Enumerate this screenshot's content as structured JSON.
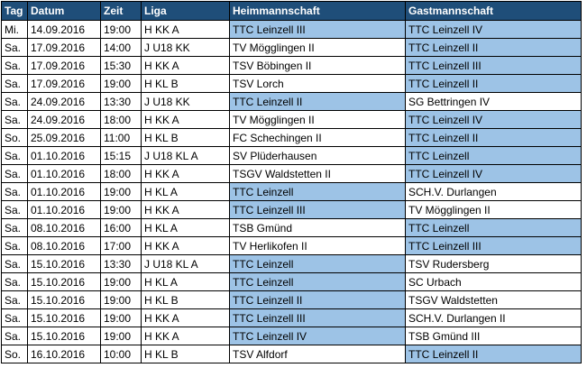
{
  "table": {
    "headers": {
      "tag": "Tag",
      "datum": "Datum",
      "zeit": "Zeit",
      "liga": "Liga",
      "heim": "Heimmannschaft",
      "gast": "Gastmannschaft"
    },
    "highlight_color": "#9dc3e6",
    "header_color": "#1f4e79",
    "rows": [
      {
        "tag": "Mi.",
        "datum": "14.09.2016",
        "zeit": "19:00",
        "liga": "H KK A",
        "heim": "TTC Leinzell III",
        "gast": "TTC Leinzell IV",
        "heim_hl": true,
        "gast_hl": true
      },
      {
        "tag": "Sa.",
        "datum": "17.09.2016",
        "zeit": "14:00",
        "liga": "J U18 KK",
        "heim": "TV Mögglingen II",
        "gast": "TTC Leinzell II",
        "heim_hl": false,
        "gast_hl": true
      },
      {
        "tag": "Sa.",
        "datum": "17.09.2016",
        "zeit": "15:30",
        "liga": "H KK A",
        "heim": "TSV Böbingen II",
        "gast": "TTC Leinzell III",
        "heim_hl": false,
        "gast_hl": true
      },
      {
        "tag": "Sa.",
        "datum": "17.09.2016",
        "zeit": "19:00",
        "liga": "H KL B",
        "heim": "TSV Lorch",
        "gast": "TTC Leinzell II",
        "heim_hl": false,
        "gast_hl": true
      },
      {
        "tag": "Sa.",
        "datum": "24.09.2016",
        "zeit": "13:30",
        "liga": "J U18 KK",
        "heim": "TTC Leinzell II",
        "gast": "SG Bettringen IV",
        "heim_hl": true,
        "gast_hl": false
      },
      {
        "tag": "Sa.",
        "datum": "24.09.2016",
        "zeit": "18:00",
        "liga": "H KK A",
        "heim": "TV Mögglingen II",
        "gast": "TTC Leinzell IV",
        "heim_hl": false,
        "gast_hl": true
      },
      {
        "tag": "So.",
        "datum": "25.09.2016",
        "zeit": "11:00",
        "liga": "H KL B",
        "heim": "FC Schechingen II",
        "gast": "TTC Leinzell II",
        "heim_hl": false,
        "gast_hl": true
      },
      {
        "tag": "Sa.",
        "datum": "01.10.2016",
        "zeit": "15:15",
        "liga": "J U18 KL A",
        "heim": "SV Plüderhausen",
        "gast": "TTC Leinzell",
        "heim_hl": false,
        "gast_hl": true
      },
      {
        "tag": "Sa.",
        "datum": "01.10.2016",
        "zeit": "18:00",
        "liga": "H KK A",
        "heim": "TSGV Waldstetten II",
        "gast": "TTC Leinzell IV",
        "heim_hl": false,
        "gast_hl": true
      },
      {
        "tag": "Sa.",
        "datum": "01.10.2016",
        "zeit": "19:00",
        "liga": "H KL A",
        "heim": "TTC Leinzell",
        "gast": "SCH.V. Durlangen",
        "heim_hl": true,
        "gast_hl": false
      },
      {
        "tag": "Sa.",
        "datum": "01.10.2016",
        "zeit": "19:00",
        "liga": "H KK A",
        "heim": "TTC Leinzell III",
        "gast": "TV Mögglingen II",
        "heim_hl": true,
        "gast_hl": false
      },
      {
        "tag": "Sa.",
        "datum": "08.10.2016",
        "zeit": "16:00",
        "liga": "H KL A",
        "heim": "TSB  Gmünd",
        "gast": "TTC Leinzell",
        "heim_hl": false,
        "gast_hl": true
      },
      {
        "tag": "Sa.",
        "datum": "08.10.2016",
        "zeit": "17:00",
        "liga": "H KK A",
        "heim": "TV Herlikofen II",
        "gast": "TTC Leinzell III",
        "heim_hl": false,
        "gast_hl": true
      },
      {
        "tag": "Sa.",
        "datum": "15.10.2016",
        "zeit": "13:30",
        "liga": "J U18 KL A",
        "heim": "TTC Leinzell",
        "gast": "TSV Rudersberg",
        "heim_hl": true,
        "gast_hl": false
      },
      {
        "tag": "Sa.",
        "datum": "15.10.2016",
        "zeit": "19:00",
        "liga": "H KL A",
        "heim": "TTC Leinzell",
        "gast": "SC Urbach",
        "heim_hl": true,
        "gast_hl": false
      },
      {
        "tag": "Sa.",
        "datum": "15.10.2016",
        "zeit": "19:00",
        "liga": "H KL B",
        "heim": "TTC Leinzell II",
        "gast": "TSGV Waldstetten",
        "heim_hl": true,
        "gast_hl": false
      },
      {
        "tag": "Sa.",
        "datum": "15.10.2016",
        "zeit": "19:00",
        "liga": "H KK A",
        "heim": "TTC Leinzell III",
        "gast": "SCH.V. Durlangen II",
        "heim_hl": true,
        "gast_hl": false
      },
      {
        "tag": "Sa.",
        "datum": "15.10.2016",
        "zeit": "19:00",
        "liga": "H KK A",
        "heim": "TTC Leinzell IV",
        "gast": "TSB  Gmünd III",
        "heim_hl": true,
        "gast_hl": false
      },
      {
        "tag": "So.",
        "datum": "16.10.2016",
        "zeit": "10:00",
        "liga": "H KL B",
        "heim": "TSV Alfdorf",
        "gast": "TTC Leinzell II",
        "heim_hl": false,
        "gast_hl": true
      }
    ]
  }
}
